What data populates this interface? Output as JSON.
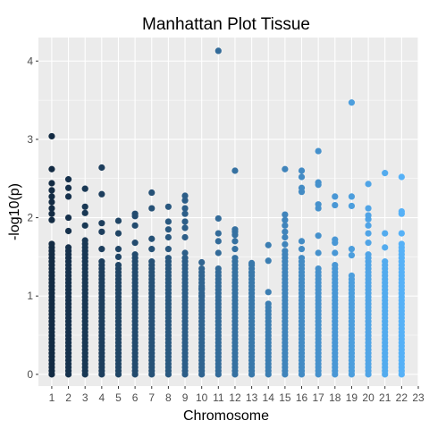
{
  "chart_data": {
    "type": "scatter",
    "title": "Manhattan Plot Tissue",
    "xlabel": "Chromosome",
    "ylabel": "-log10(p)",
    "x_ticks": [
      "1",
      "2",
      "3",
      "4",
      "5",
      "6",
      "7",
      "8",
      "9",
      "10",
      "11",
      "12",
      "13",
      "14",
      "15",
      "16",
      "17",
      "18",
      "19",
      "20",
      "21",
      "22",
      "23"
    ],
    "y_ticks": [
      "0",
      "1",
      "2",
      "3",
      "4"
    ],
    "xlim": [
      0.2,
      23.0
    ],
    "ylim": [
      -0.15,
      4.3
    ],
    "grid": true,
    "panel_background": "#ebebeb",
    "grid_color": "#ffffff",
    "color_start": "#132b43",
    "color_end": "#56b1f7",
    "series": [
      {
        "chromosome": 1,
        "column_top": 1.67,
        "points": [
          3.04,
          2.62,
          2.44,
          2.35,
          2.27,
          2.2,
          2.12,
          2.05,
          1.97
        ]
      },
      {
        "chromosome": 2,
        "column_top": 1.65,
        "points": [
          2.49,
          2.38,
          2.27,
          2.0,
          1.83
        ]
      },
      {
        "chromosome": 3,
        "column_top": 1.72,
        "points": [
          2.37,
          2.14,
          2.06,
          1.9
        ]
      },
      {
        "chromosome": 4,
        "column_top": 1.44,
        "points": [
          2.64,
          2.3,
          1.93,
          1.82,
          1.6
        ]
      },
      {
        "chromosome": 5,
        "column_top": 1.4,
        "points": [
          1.96,
          1.8,
          1.6,
          1.5
        ]
      },
      {
        "chromosome": 6,
        "column_top": 1.55,
        "points": [
          2.05,
          2.02,
          1.9,
          1.68
        ]
      },
      {
        "chromosome": 7,
        "column_top": 1.45,
        "points": [
          2.32,
          2.12,
          1.73,
          1.6
        ]
      },
      {
        "chromosome": 8,
        "column_top": 1.5,
        "points": [
          2.14,
          1.95,
          1.85,
          1.75,
          1.6
        ]
      },
      {
        "chromosome": 9,
        "column_top": 1.5,
        "points": [
          2.28,
          2.22,
          2.12,
          2.05,
          1.95,
          1.87,
          1.75,
          1.55
        ]
      },
      {
        "chromosome": 10,
        "column_top": 1.33,
        "points": [
          1.43,
          1.35,
          1.1,
          1.0
        ]
      },
      {
        "chromosome": 11,
        "column_top": 1.35,
        "points": [
          4.13,
          1.99,
          1.8,
          1.7,
          1.55
        ]
      },
      {
        "chromosome": 12,
        "column_top": 1.52,
        "points": [
          2.6,
          1.85,
          1.82,
          1.78,
          1.7,
          1.6
        ]
      },
      {
        "chromosome": 13,
        "column_top": 1.4,
        "points": [
          1.42,
          1.3
        ]
      },
      {
        "chromosome": 14,
        "column_top": 0.9,
        "points": [
          1.65,
          1.45,
          1.05
        ]
      },
      {
        "chromosome": 15,
        "column_top": 1.6,
        "points": [
          2.62,
          2.04,
          1.97,
          1.9,
          1.82,
          1.75,
          1.66
        ]
      },
      {
        "chromosome": 16,
        "column_top": 1.5,
        "points": [
          2.6,
          2.52,
          2.38,
          2.33,
          1.7,
          1.6
        ]
      },
      {
        "chromosome": 17,
        "column_top": 1.35,
        "points": [
          2.85,
          2.45,
          2.42,
          2.17,
          2.12,
          1.77,
          1.55
        ]
      },
      {
        "chromosome": 18,
        "column_top": 1.4,
        "points": [
          2.27,
          2.16,
          1.72,
          1.68,
          1.55
        ]
      },
      {
        "chromosome": 19,
        "column_top": 1.3,
        "points": [
          3.47,
          2.27,
          2.15,
          1.6,
          1.52
        ]
      },
      {
        "chromosome": 20,
        "column_top": 1.55,
        "points": [
          2.43,
          2.12,
          2.03,
          1.98,
          1.9,
          1.8,
          1.68
        ]
      },
      {
        "chromosome": 21,
        "column_top": 1.45,
        "points": [
          2.57,
          1.8,
          1.62
        ]
      },
      {
        "chromosome": 22,
        "column_top": 1.68,
        "points": [
          2.52,
          2.08,
          2.05,
          1.8
        ]
      }
    ]
  }
}
